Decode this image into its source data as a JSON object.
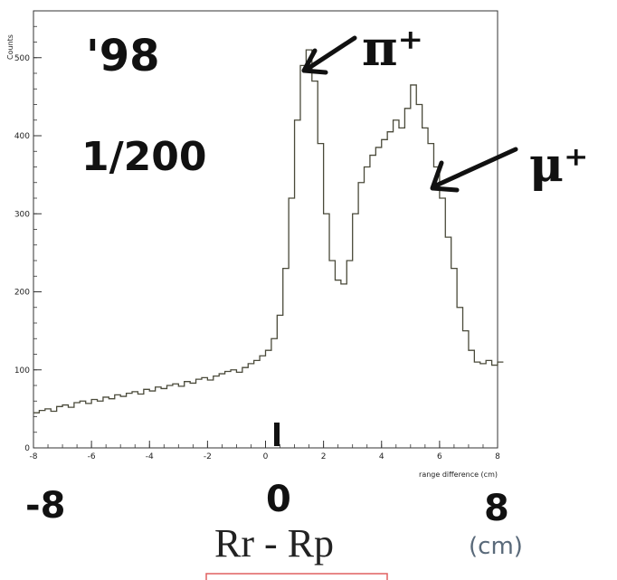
{
  "chart_data": {
    "type": "histogram",
    "xlabel": "range difference (cm)",
    "ylabel": "Counts",
    "xlim": [
      -8,
      8
    ],
    "ylim": [
      0,
      560
    ],
    "x_ticks": [
      "-8",
      "-6",
      "-4",
      "-2",
      "0",
      "2",
      "4",
      "6",
      "8"
    ],
    "y_ticks": [
      "0",
      "100",
      "200",
      "300",
      "400",
      "500"
    ],
    "bin_width": 0.2,
    "bin_start": -8,
    "values": [
      45,
      48,
      50,
      47,
      53,
      55,
      52,
      58,
      60,
      57,
      62,
      60,
      65,
      63,
      68,
      66,
      70,
      72,
      69,
      75,
      73,
      78,
      76,
      80,
      82,
      79,
      85,
      83,
      88,
      90,
      87,
      92,
      95,
      98,
      100,
      97,
      103,
      108,
      112,
      118,
      125,
      140,
      170,
      230,
      320,
      420,
      490,
      510,
      470,
      390,
      300,
      240,
      215,
      210,
      240,
      300,
      340,
      360,
      375,
      385,
      395,
      405,
      420,
      410,
      435,
      465,
      440,
      410,
      390,
      360,
      320,
      270,
      230,
      180,
      150,
      125,
      110,
      108,
      112,
      106,
      110
    ]
  },
  "annotations": {
    "year": "'98",
    "prescale": "1/200",
    "pion_label": "π⁺",
    "muon_label": "μ⁺",
    "x_left": "-8",
    "x_zero": "0",
    "x_right": "8",
    "quantity": "Rr - Rp",
    "unit": "(cm)"
  }
}
